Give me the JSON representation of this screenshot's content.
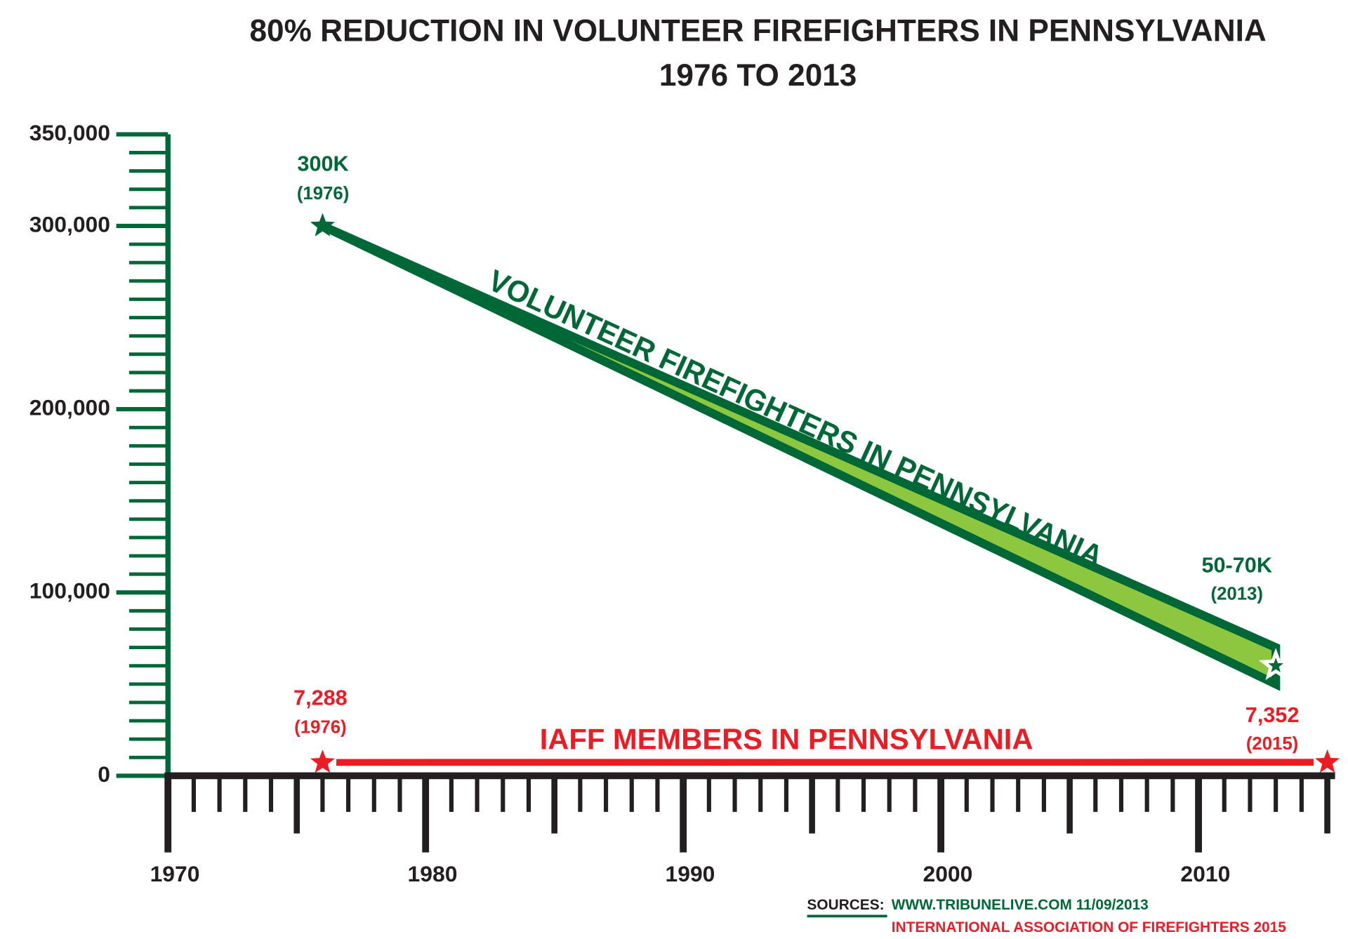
{
  "chart_data": {
    "type": "line",
    "title": "80% REDUCTION IN VOLUNTEER FIREFIGHTERS IN PENNSYLVANIA",
    "subtitle": "1976 TO 2013",
    "ylim": [
      0,
      350000
    ],
    "yticks": [
      0,
      {
        "value": 100000,
        "label": "100,000"
      },
      {
        "value": 200000,
        "label": "200,000"
      },
      {
        "value": 300000,
        "label": "300,000"
      },
      {
        "value": 350000,
        "label": "350,000"
      }
    ],
    "yminorticks": [
      10000,
      20000,
      30000,
      40000,
      50000,
      60000,
      70000,
      80000,
      90000,
      110000,
      120000,
      130000,
      140000,
      150000,
      160000,
      170000,
      180000,
      190000,
      210000,
      220000,
      230000,
      240000,
      250000,
      260000,
      270000,
      280000,
      290000,
      310000,
      320000,
      330000,
      340000
    ],
    "xlim": [
      1970,
      2015
    ],
    "xticks": [
      1970,
      1980,
      1990,
      2000,
      2010
    ],
    "xminorticks": [
      1971,
      1972,
      1973,
      1974,
      1975,
      1976,
      1977,
      1978,
      1979,
      1981,
      1982,
      1983,
      1984,
      1985,
      1986,
      1987,
      1988,
      1989,
      1991,
      1992,
      1993,
      1994,
      1995,
      1996,
      1997,
      1998,
      1999,
      2001,
      2002,
      2003,
      2004,
      2005,
      2006,
      2007,
      2008,
      2009,
      2011,
      2012,
      2013,
      2014,
      2015
    ],
    "series": [
      {
        "name": "VOLUNTEER FIREFIGHTERS IN PENNSYLVANIA",
        "color": "#006837",
        "fill": "#8dc63f",
        "x": [
          1976,
          2013
        ],
        "low": [
          300000,
          50000
        ],
        "high": [
          300000,
          70000
        ],
        "value_labels": [
          "300K",
          "50-70K"
        ],
        "date_labels": [
          "(1976)",
          "(2013)"
        ]
      },
      {
        "name": "IAFF MEMBERS IN PENNSYLVANIA",
        "color": "#ed1c24",
        "x": [
          1976,
          2015
        ],
        "values": [
          7288,
          7352
        ],
        "value_labels": [
          "7,288",
          "7,352"
        ],
        "date_labels": [
          "(1976)",
          "(2015)"
        ]
      }
    ],
    "sources": {
      "label": "SOURCES:",
      "lines": [
        "WWW.TRIBUNELIVE.COM 11/09/2013",
        "INTERNATIONAL ASSOCIATION OF FIREFIGHTERS 2015"
      ]
    }
  }
}
